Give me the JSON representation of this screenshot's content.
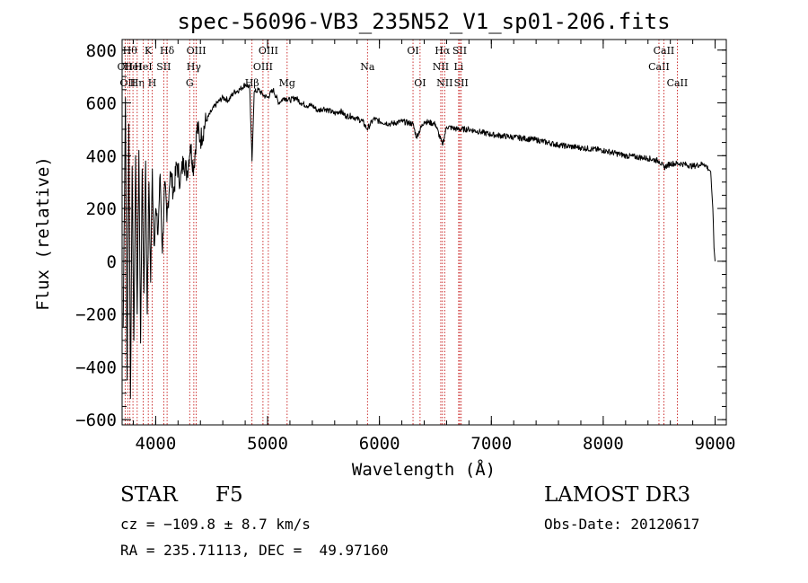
{
  "chart_data": {
    "type": "line",
    "title": "spec-56096-VB3_235N52_V1_sp01-206.fits",
    "xlabel": "Wavelength (Å)",
    "ylabel": "Flux (relative)",
    "xlim": [
      3700,
      9100
    ],
    "ylim": [
      -620,
      840
    ],
    "x_ticks": [
      4000,
      5000,
      6000,
      7000,
      8000,
      9000
    ],
    "y_ticks": [
      -600,
      -400,
      -200,
      0,
      200,
      400,
      600,
      800
    ],
    "x_minor_step": 200,
    "y_minor_step": 50,
    "series": [
      {
        "name": "spectrum",
        "x": [
          3710,
          3730,
          3745,
          3760,
          3775,
          3790,
          3805,
          3820,
          3835,
          3850,
          3865,
          3880,
          3895,
          3910,
          3925,
          3940,
          3955,
          3970,
          3985,
          4000,
          4020,
          4040,
          4060,
          4080,
          4100,
          4130,
          4160,
          4190,
          4220,
          4250,
          4280,
          4310,
          4340,
          4370,
          4400,
          4450,
          4500,
          4550,
          4600,
          4650,
          4700,
          4750,
          4800,
          4840,
          4861,
          4880,
          4920,
          4960,
          5000,
          5050,
          5100,
          5150,
          5200,
          5250,
          5300,
          5350,
          5400,
          5450,
          5500,
          5550,
          5600,
          5650,
          5700,
          5750,
          5800,
          5850,
          5890,
          5950,
          6000,
          6100,
          6200,
          6300,
          6330,
          6400,
          6500,
          6563,
          6600,
          6700,
          6800,
          6900,
          7000,
          7200,
          7400,
          7600,
          7800,
          8000,
          8200,
          8400,
          8500,
          8542,
          8600,
          8700,
          8800,
          8900,
          8960,
          8980,
          8990,
          9000
        ],
        "y": [
          -250,
          620,
          -450,
          520,
          -520,
          360,
          -300,
          400,
          -200,
          420,
          -310,
          350,
          -120,
          380,
          -200,
          300,
          -80,
          350,
          60,
          200,
          100,
          330,
          30,
          300,
          150,
          340,
          260,
          370,
          300,
          390,
          330,
          440,
          350,
          510,
          460,
          530,
          570,
          600,
          620,
          610,
          640,
          650,
          670,
          660,
          380,
          640,
          650,
          630,
          620,
          650,
          600,
          620,
          610,
          620,
          600,
          590,
          590,
          570,
          580,
          570,
          560,
          570,
          550,
          550,
          540,
          530,
          500,
          540,
          530,
          520,
          530,
          520,
          470,
          530,
          520,
          440,
          510,
          500,
          500,
          490,
          480,
          470,
          460,
          440,
          430,
          420,
          400,
          390,
          380,
          355,
          370,
          370,
          360,
          370,
          340,
          200,
          50,
          0
        ]
      }
    ],
    "line_markers": [
      {
        "wavelength": 3727,
        "label": "OII",
        "row": 2
      },
      {
        "wavelength": 3750,
        "label": "OII",
        "row": 3
      },
      {
        "wavelength": 3770,
        "label": "Hθ",
        "row": 1
      },
      {
        "wavelength": 3797,
        "label": "HeI",
        "row": 2
      },
      {
        "wavelength": 3835,
        "label": "Hη",
        "row": 3
      },
      {
        "wavelength": 3889,
        "label": "HeI",
        "row": 2
      },
      {
        "wavelength": 3934,
        "label": "K",
        "row": 1
      },
      {
        "wavelength": 3969,
        "label": "H",
        "row": 3
      },
      {
        "wavelength": 4072,
        "label": "SII",
        "row": 2
      },
      {
        "wavelength": 4102,
        "label": "Hδ",
        "row": 1
      },
      {
        "wavelength": 4304,
        "label": "G",
        "row": 3
      },
      {
        "wavelength": 4341,
        "label": "Hγ",
        "row": 2
      },
      {
        "wavelength": 4363,
        "label": "OIII",
        "row": 1
      },
      {
        "wavelength": 4861,
        "label": "Hβ",
        "row": 3
      },
      {
        "wavelength": 4959,
        "label": "OIII",
        "row": 2
      },
      {
        "wavelength": 5007,
        "label": "OIII",
        "row": 1
      },
      {
        "wavelength": 5175,
        "label": "Mg",
        "row": 3
      },
      {
        "wavelength": 5893,
        "label": "Na",
        "row": 2
      },
      {
        "wavelength": 6300,
        "label": "OI",
        "row": 1
      },
      {
        "wavelength": 6363,
        "label": "OI",
        "row": 3
      },
      {
        "wavelength": 6548,
        "label": "NII",
        "row": 2
      },
      {
        "wavelength": 6563,
        "label": "Hα",
        "row": 1
      },
      {
        "wavelength": 6583,
        "label": "NII",
        "row": 3
      },
      {
        "wavelength": 6708,
        "label": "Li",
        "row": 2
      },
      {
        "wavelength": 6717,
        "label": "SII",
        "row": 1
      },
      {
        "wavelength": 6731,
        "label": "SII",
        "row": 3
      },
      {
        "wavelength": 8498,
        "label": "CaII",
        "row": 2
      },
      {
        "wavelength": 8542,
        "label": "CaII",
        "row": 1
      },
      {
        "wavelength": 8662,
        "label": "CaII",
        "row": 3
      }
    ],
    "colors": {
      "line": "#000000",
      "marker": "#c00000",
      "axes": "#000000"
    }
  },
  "info": {
    "object_type": "STAR",
    "subclass": "F5",
    "survey": "LAMOST DR3",
    "velocity": "cz = −109.8 ± 8.7 km/s",
    "obs_date": "Obs-Date: 20120617",
    "coords": "RA = 235.71113, DEC =  49.97160"
  }
}
